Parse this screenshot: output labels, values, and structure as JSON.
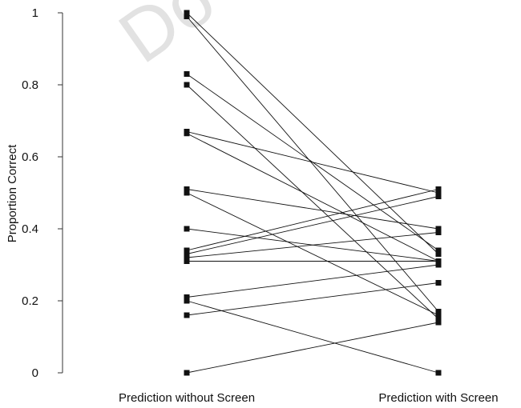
{
  "chart_data": {
    "type": "line",
    "title": "",
    "xlabel": "",
    "ylabel": "Proportion Correct",
    "ylim": [
      0,
      1
    ],
    "yticks": [
      0,
      0.2,
      0.4,
      0.6,
      0.8,
      1
    ],
    "ytick_labels": [
      "0",
      "0.2",
      "0.4",
      "0.6",
      "0.8",
      "1"
    ],
    "categories": [
      "Prediction without Screen",
      "Prediction with Screen"
    ],
    "grid": false,
    "legend": "none",
    "watermark": "Do",
    "series": [
      {
        "values": [
          1.0,
          0.33
        ]
      },
      {
        "values": [
          0.99,
          0.17
        ]
      },
      {
        "values": [
          0.83,
          0.34
        ]
      },
      {
        "values": [
          0.8,
          0.15
        ]
      },
      {
        "values": [
          0.67,
          0.5
        ]
      },
      {
        "values": [
          0.665,
          0.31
        ]
      },
      {
        "values": [
          0.51,
          0.4
        ]
      },
      {
        "values": [
          0.5,
          0.16
        ]
      },
      {
        "values": [
          0.4,
          0.31
        ]
      },
      {
        "values": [
          0.34,
          0.51
        ]
      },
      {
        "values": [
          0.33,
          0.49
        ]
      },
      {
        "values": [
          0.32,
          0.39
        ]
      },
      {
        "values": [
          0.31,
          0.31
        ]
      },
      {
        "values": [
          0.21,
          0.3
        ]
      },
      {
        "values": [
          0.2,
          0.0
        ]
      },
      {
        "values": [
          0.16,
          0.25
        ]
      },
      {
        "values": [
          0.0,
          0.14
        ]
      }
    ]
  }
}
